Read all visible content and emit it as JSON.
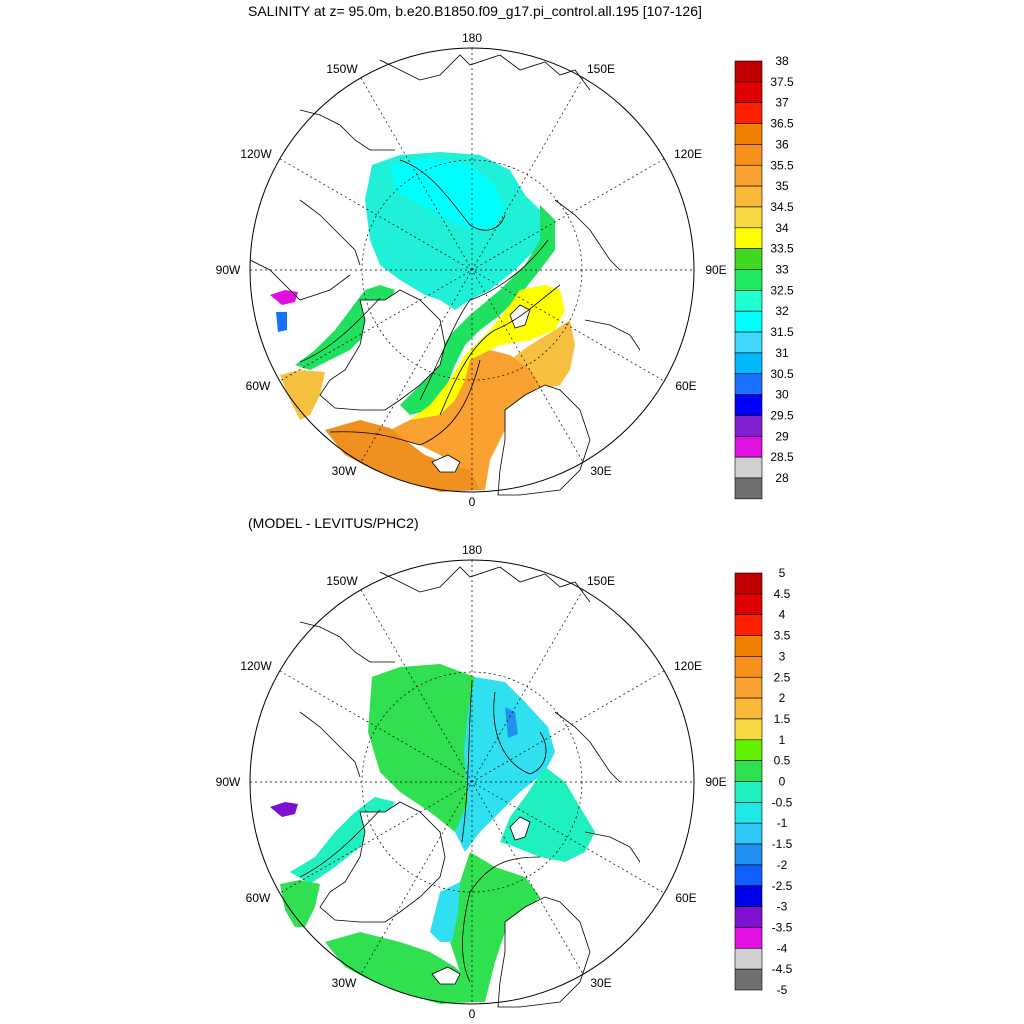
{
  "panels": [
    {
      "title": "SALINITY at z=  95.0m, b.e20.B1850.f09_g17.pi_control.all.195 [107-126]",
      "lon_labels": [
        "180",
        "150E",
        "120E",
        "90E",
        "60E",
        "30E",
        "0",
        "30W",
        "60W",
        "90W",
        "120W",
        "150W"
      ],
      "colorbar": {
        "labels": [
          "38",
          "37.5",
          "37",
          "36.5",
          "36",
          "35.5",
          "35",
          "34.5",
          "34",
          "33.5",
          "33",
          "32.5",
          "32",
          "31.5",
          "31",
          "30.5",
          "30",
          "29.5",
          "29",
          "28.5",
          "28"
        ],
        "colors": [
          "#c00000",
          "#e00000",
          "#ff2000",
          "#f08000",
          "#f89020",
          "#f8a030",
          "#f8b838",
          "#f8d840",
          "#ffff00",
          "#40d820",
          "#20e860",
          "#20ffd0",
          "#00ffff",
          "#40d8ff",
          "#00b8ff",
          "#1870ff",
          "#0000ff",
          "#8020d0",
          "#e010e0",
          "#d0d0d0",
          "#707070"
        ]
      }
    },
    {
      "title": "(MODEL - LEVITUS/PHC2)",
      "lon_labels": [
        "180",
        "150E",
        "120E",
        "90E",
        "60E",
        "30E",
        "0",
        "30W",
        "60W",
        "90W",
        "120W",
        "150W"
      ],
      "colorbar": {
        "labels": [
          "5",
          "4.5",
          "4",
          "3.5",
          "3",
          "2.5",
          "2",
          "1.5",
          "1",
          "0.5",
          "0",
          "-0.5",
          "-1",
          "-1.5",
          "-2",
          "-2.5",
          "-3",
          "-3.5",
          "-4",
          "-4.5",
          "-5"
        ],
        "colors": [
          "#c00000",
          "#e00000",
          "#ff2000",
          "#f08000",
          "#f89020",
          "#f8a030",
          "#f8b838",
          "#f8d840",
          "#60f000",
          "#30e050",
          "#20f0c0",
          "#20e8e8",
          "#30c8f8",
          "#2090f0",
          "#1060ff",
          "#0000e8",
          "#8010d0",
          "#e010e0",
          "#d0d0d0",
          "#707070"
        ]
      }
    }
  ],
  "fill_colors": {
    "ocean_32": "#20f0d8",
    "cyan": "#00ffff",
    "green": "#20e060",
    "yellow": "#ffff00",
    "orange_light": "#f8c040",
    "orange": "#f8a030",
    "orange_dark": "#f09020",
    "diff_green": "#30e050",
    "diff_cyan": "#30e0f0",
    "diff_teal": "#20f0c0"
  }
}
